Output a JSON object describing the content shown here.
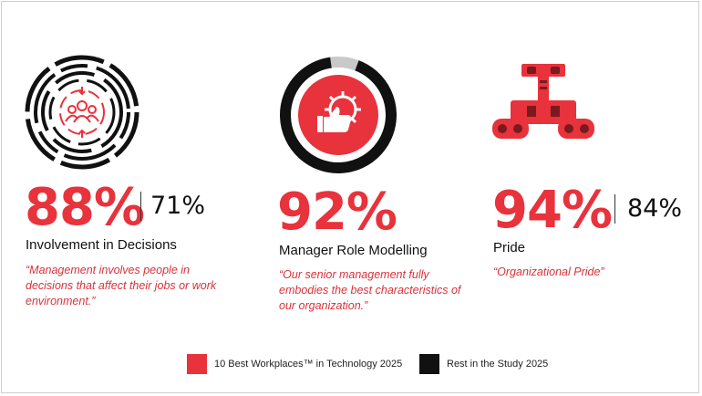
{
  "colors": {
    "accent": "#e8323c",
    "dark": "#111111",
    "light_gray": "#c9c9c9"
  },
  "cards": [
    {
      "icon": "people-target-icon",
      "best_value": "88%",
      "rest_value": "71%",
      "title": "Involvement in Decisions",
      "quote": "“Management involves people in decisions that affect their jobs or work environment.”"
    },
    {
      "icon": "gear-thumbs-up-icon",
      "best_value": "92%",
      "title": "Manager Role Modelling",
      "quote": "“Our senior management fully embodies the best characteristics of our organization.”"
    },
    {
      "icon": "robot-tank-icon",
      "best_value": "94%",
      "rest_value": "84%",
      "title": "Pride",
      "quote": "“Organizational Pride”"
    }
  ],
  "legend": {
    "best_label": "10 Best Workplaces™ in Technology 2025",
    "rest_label": "Rest in the Study 2025"
  }
}
